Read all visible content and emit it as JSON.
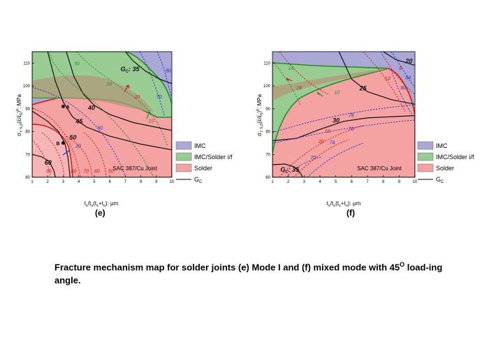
{
  "caption": {
    "text_before_sup": "Fracture mechanism map for solder joints (e) Mode I and (f) mixed mode with 45",
    "sup": "O",
    "text_after_sup": " load-ing angle."
  },
  "chart_data": [
    {
      "type": "area",
      "panel": "(e)",
      "joint_label": "SAC 387/Cu Joint",
      "xlabel_parts": [
        "t",
        "s",
        "/t",
        "u",
        "(t",
        "s",
        "+t",
        "u",
        "): μm"
      ],
      "ylabel_parts": [
        "σ",
        "Y S,0",
        "(έ/έ",
        "0",
        ")",
        "p",
        ": MPa"
      ],
      "xlim": [
        1,
        10
      ],
      "ylim": [
        60,
        115
      ],
      "xticks": [
        1,
        2,
        3,
        4,
        5,
        6,
        7,
        8,
        9,
        10
      ],
      "yticks": [
        60,
        70,
        80,
        90,
        100,
        110
      ],
      "legend": [
        {
          "label": "IMC",
          "color": "#a9a8d6",
          "kind": "patch"
        },
        {
          "label": "IMC/Solder i/f",
          "color": "#98cc92",
          "kind": "patch"
        },
        {
          "label": "Solder",
          "color": "#f5a2a2",
          "kind": "patch"
        },
        {
          "label": "G",
          "sub": "C",
          "kind": "line"
        }
      ],
      "region_colors": {
        "imc": "#a9a8d6",
        "interface": "#98cc92",
        "solder": "#f5a2a2",
        "overlap": "#b09a7a",
        "imc_edge": "#1d1d8a",
        "interface_edge": "#2a8a2a",
        "solder_edge": "#d01818"
      },
      "gc_contours": [
        {
          "value": 35,
          "label": "G",
          "sub": "C",
          "suffix": ": 35",
          "label_at": [
            6.7,
            106.5
          ],
          "points": [
            [
              7.0,
              115
            ],
            [
              7.5,
              111
            ],
            [
              8.3,
              106.5
            ],
            [
              9.2,
              103
            ],
            [
              10,
              101
            ]
          ]
        },
        {
          "value": 40,
          "label": "40",
          "label_at": [
            4.6,
            89.5
          ],
          "points": [
            [
              3.2,
              115
            ],
            [
              3.7,
              104
            ],
            [
              4.3,
              96.5
            ],
            [
              5.0,
              91.5
            ],
            [
              6.0,
              87.5
            ],
            [
              7.5,
              84
            ],
            [
              10,
              80.5
            ]
          ]
        },
        {
          "value": 45,
          "label": "45",
          "label_at": [
            3.8,
            83.5
          ],
          "points": [
            [
              2.0,
              115
            ],
            [
              2.5,
              102
            ],
            [
              3.0,
              93
            ],
            [
              3.6,
              86.5
            ],
            [
              4.5,
              82
            ],
            [
              6.0,
              78
            ],
            [
              8.0,
              74.5
            ],
            [
              10,
              72
            ]
          ]
        },
        {
          "value": 50,
          "label": "50",
          "label_at": [
            3.4,
            76.5
          ],
          "points": [
            [
              1.0,
              89
            ],
            [
              2.0,
              84.5
            ],
            [
              2.7,
              80
            ],
            [
              3.1,
              75
            ],
            [
              3.3,
              69
            ],
            [
              3.4,
              63
            ],
            [
              3.45,
              60
            ]
          ]
        },
        {
          "value": 60,
          "label": "60",
          "label_at": [
            1.8,
            65.5
          ],
          "points": [
            [
              1.0,
              70
            ],
            [
              1.6,
              69
            ],
            [
              2.1,
              67
            ],
            [
              2.4,
              63
            ],
            [
              2.5,
              60
            ]
          ]
        }
      ],
      "dotted_labels": [
        {
          "text": "30",
          "at": [
            3.7,
            109
          ],
          "color": "#2a8a2a"
        },
        {
          "text": "20",
          "at": [
            5.8,
            100
          ],
          "color": "#2a8a2a"
        },
        {
          "text": "20",
          "at": [
            7.6,
            94.5
          ],
          "color": "#d01818"
        },
        {
          "text": "10",
          "at": [
            8.5,
            84
          ],
          "color": "#2a8a2a"
        },
        {
          "text": "70",
          "at": [
            9.0,
            94.5
          ],
          "color": "#2d2dbb"
        },
        {
          "text": "80",
          "at": [
            9.6,
            106
          ],
          "color": "#2d2dbb"
        },
        {
          "text": "50",
          "at": [
            5.2,
            81
          ],
          "color": "#2d2dbb"
        },
        {
          "text": "20",
          "at": [
            3.8,
            73
          ],
          "color": "#2d2dbb"
        },
        {
          "text": "95",
          "at": [
            1.9,
            62
          ],
          "color": "#d01818"
        },
        {
          "text": "80",
          "at": [
            3.5,
            62
          ],
          "color": "#d01818"
        },
        {
          "text": "70",
          "at": [
            4.3,
            62
          ],
          "color": "#d01818"
        },
        {
          "text": "60",
          "at": [
            5.0,
            62
          ],
          "color": "#d01818"
        },
        {
          "text": "50",
          "at": [
            5.9,
            62
          ],
          "color": "#d01818"
        }
      ],
      "points": [
        {
          "label": "A",
          "x": 3.0,
          "y": 91
        },
        {
          "label": "B",
          "x": 3.0,
          "y": 75
        }
      ]
    },
    {
      "type": "area",
      "panel": "(f)",
      "joint_label": "SAC 387/Cu Joint",
      "xlabel_parts": [
        "t",
        "s",
        "/t",
        "u",
        "(t",
        "s",
        "+t",
        "u",
        "): μm"
      ],
      "ylabel_parts": [
        "σ",
        "Y S,0",
        "(έ/έ",
        "0",
        ")",
        "p",
        ": MPa"
      ],
      "xlim": [
        1,
        10
      ],
      "ylim": [
        60,
        115
      ],
      "xticks": [
        1,
        2,
        3,
        4,
        5,
        6,
        7,
        8,
        9,
        10
      ],
      "yticks": [
        60,
        70,
        80,
        90,
        100,
        110
      ],
      "legend": [
        {
          "label": "IMC",
          "color": "#a9a8d6",
          "kind": "patch"
        },
        {
          "label": "IMC/Solder i/f",
          "color": "#98cc92",
          "kind": "patch"
        },
        {
          "label": "Solder",
          "color": "#f5a2a2",
          "kind": "patch"
        },
        {
          "label": "G",
          "sub": "C",
          "kind": "line"
        }
      ],
      "region_colors": {
        "imc": "#a9a8d6",
        "interface": "#98cc92",
        "solder": "#f5a2a2",
        "overlap": "#b09a7a",
        "imc_edge": "#1d1d8a",
        "interface_edge": "#2a8a2a",
        "solder_edge": "#d01818"
      },
      "gc_contours": [
        {
          "value": 20,
          "label": "20",
          "label_at": [
            9.4,
            110
          ],
          "points": [
            [
              8.0,
              115
            ],
            [
              8.8,
              111.5
            ],
            [
              10,
              109
            ]
          ]
        },
        {
          "value": 25,
          "label": "25",
          "label_at": [
            6.5,
            98
          ],
          "points": [
            [
              5.2,
              115
            ],
            [
              6.0,
              103
            ],
            [
              7.0,
              97.5
            ],
            [
              8.5,
              94
            ],
            [
              10,
              92
            ]
          ]
        },
        {
          "value": 30,
          "label": "30",
          "label_at": [
            4.8,
            84
          ],
          "points": [
            [
              1.0,
              76
            ],
            [
              2.5,
              77
            ],
            [
              4.0,
              81
            ],
            [
              5.5,
              84.5
            ],
            [
              7.0,
              86
            ],
            [
              10,
              87
            ]
          ]
        },
        {
          "value": 35,
          "label": "G",
          "sub": "C",
          "suffix": ": 35",
          "label_at": [
            1.5,
            62.5
          ],
          "points": [
            [
              1.0,
              65.5
            ],
            [
              1.8,
              65.8
            ],
            [
              2.4,
              64.5
            ],
            [
              2.8,
              61.5
            ],
            [
              2.9,
              60
            ]
          ]
        }
      ],
      "dotted_labels": [
        {
          "text": "14",
          "at": [
            2.0,
            107
          ],
          "color": "#2a8a2a"
        },
        {
          "text": "8",
          "at": [
            9.0,
            107
          ],
          "color": "#d01818"
        },
        {
          "text": "84",
          "at": [
            9.4,
            103
          ],
          "color": "#2d2dbb"
        },
        {
          "text": "18",
          "at": [
            2.5,
            98.5
          ],
          "color": "#d01818"
        },
        {
          "text": "12",
          "at": [
            8.1,
            102.5
          ],
          "color": "#d01818"
        },
        {
          "text": "80",
          "at": [
            9.1,
            98.5
          ],
          "color": "#2d2dbb"
        },
        {
          "text": "10",
          "at": [
            4.9,
            96.5
          ],
          "color": "#2a8a2a"
        },
        {
          "text": "78",
          "at": [
            5.8,
            86.5
          ],
          "color": "#2d2dbb"
        },
        {
          "text": "76",
          "at": [
            5.8,
            80.5
          ],
          "color": "#2d2dbb"
        },
        {
          "text": "16",
          "at": [
            4.3,
            79.5
          ],
          "color": "#d01818"
        },
        {
          "text": "20",
          "at": [
            3.9,
            75
          ],
          "color": "#d01818"
        },
        {
          "text": "74",
          "at": [
            4.6,
            74.5
          ],
          "color": "#2d2dbb"
        },
        {
          "text": "70",
          "at": [
            3.4,
            68
          ],
          "color": "#2d2dbb"
        }
      ],
      "points": []
    }
  ]
}
